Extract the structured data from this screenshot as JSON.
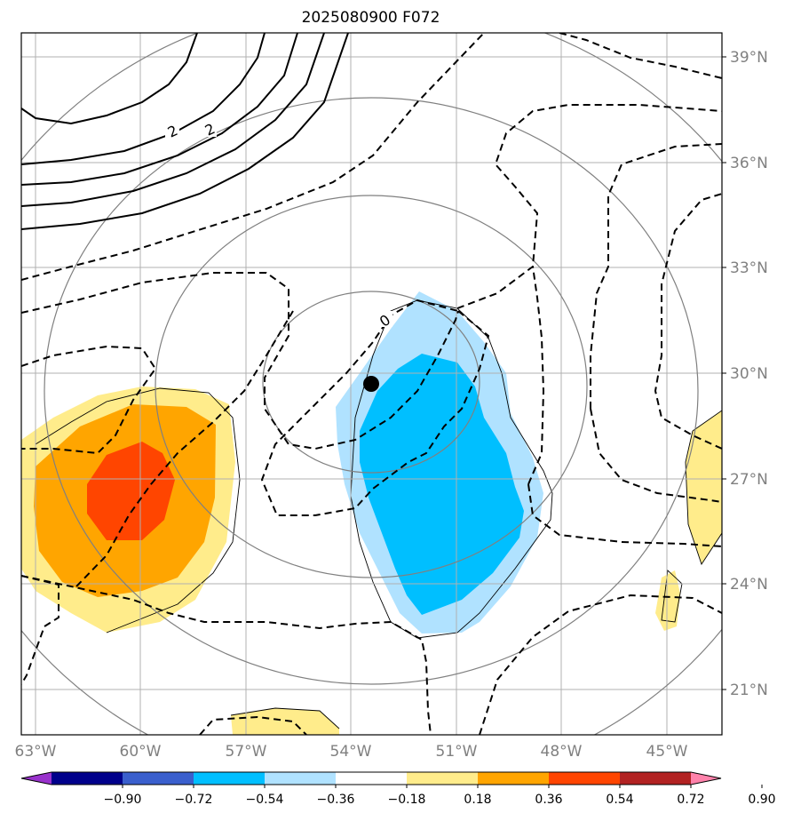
{
  "title": "2025080900 F072",
  "map": {
    "lon_ticks": [
      "63°W",
      "60°W",
      "57°W",
      "54°W",
      "51°W",
      "48°W",
      "45°W"
    ],
    "lat_ticks": [
      "39°N",
      "36°N",
      "33°N",
      "30°N",
      "27°N",
      "24°N",
      "21°N"
    ],
    "contour_labels": [
      "2",
      "2",
      "0"
    ],
    "center_marker": "storm-center",
    "colors": {
      "frame": "#000000",
      "grid": "#b0b0b0",
      "range_rings": "#808080",
      "contour": "#000000"
    }
  },
  "colorbar": {
    "tick_labels": [
      "−0.90",
      "−0.72",
      "−0.54",
      "−0.36",
      "−0.18",
      "0.18",
      "0.36",
      "0.54",
      "0.72",
      "0.90"
    ],
    "colors": [
      "#9932cc",
      "#00008b",
      "#3a5fcd",
      "#00bfff",
      "#b0e2ff",
      "#ffffff",
      "#ffec8b",
      "#ffa500",
      "#ff4500",
      "#b22222",
      "#ff82ab"
    ]
  }
}
